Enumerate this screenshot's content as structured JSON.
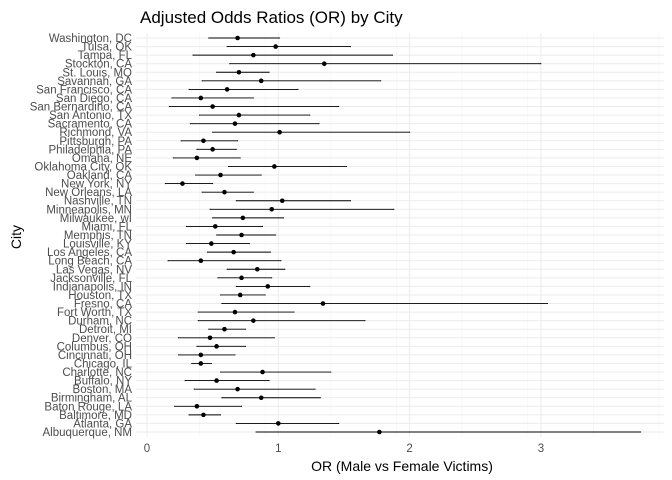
{
  "chart_data": {
    "type": "scatter",
    "title": "Adjusted Odds Ratios (OR) by City",
    "xlabel": "OR (Male vs Female Victims)",
    "ylabel": "City",
    "xlim": [
      -0.1,
      3.9
    ],
    "xticks": [
      0,
      1,
      2,
      3
    ],
    "grid": true,
    "legend": "none",
    "cities": [
      "Albuquerque, NM",
      "Atlanta, GA",
      "Baltimore, MD",
      "Baton Rouge, LA",
      "Birmingham, AL",
      "Boston, MA",
      "Buffalo, NY",
      "Charlotte, NC",
      "Chicago, IL",
      "Cincinnati, OH",
      "Columbus, OH",
      "Denver, CO",
      "Detroit, MI",
      "Durham, NC",
      "Fort Worth, TX",
      "Fresno, CA",
      "Houston, TX",
      "Indianapolis, IN",
      "Jacksonville, FL",
      "Las Vegas, NV",
      "Long Beach, CA",
      "Los Angeles, CA",
      "Louisville, KY",
      "Memphis, TN",
      "Miami, FL",
      "Milwaukee, wI",
      "Minneapolis, MN",
      "Nashville, TN",
      "New Orleans, LA",
      "New York, NY",
      "Oakland, CA",
      "Oklahoma City, OK",
      "Omaha, NE",
      "Philadelphia, PA",
      "Pittsburgh, PA",
      "Richmond, VA",
      "Sacramento, CA",
      "San Antonio, TX",
      "San Bernardino, CA",
      "San Diego, CA",
      "San Francisco, CA",
      "Savannah, GA",
      "St. Louis, MO",
      "Stockton, CA",
      "Tampa, FL",
      "Tulsa, OK",
      "Washington, DC"
    ],
    "or": [
      1.77,
      1.0,
      0.43,
      0.38,
      0.87,
      0.69,
      0.53,
      0.88,
      0.41,
      0.41,
      0.53,
      0.48,
      0.59,
      0.81,
      0.67,
      1.34,
      0.71,
      0.92,
      0.72,
      0.84,
      0.41,
      0.66,
      0.49,
      0.72,
      0.52,
      0.73,
      0.95,
      1.03,
      0.59,
      0.27,
      0.56,
      0.97,
      0.38,
      0.5,
      0.43,
      1.01,
      0.67,
      0.7,
      0.5,
      0.41,
      0.61,
      0.87,
      0.7,
      1.35,
      0.81,
      0.98,
      0.69
    ],
    "lower": [
      0.83,
      0.68,
      0.32,
      0.21,
      0.57,
      0.36,
      0.29,
      0.56,
      0.34,
      0.24,
      0.38,
      0.24,
      0.47,
      0.39,
      0.39,
      0.57,
      0.56,
      0.68,
      0.54,
      0.61,
      0.16,
      0.46,
      0.3,
      0.53,
      0.3,
      0.5,
      0.48,
      0.68,
      0.42,
      0.14,
      0.37,
      0.62,
      0.2,
      0.38,
      0.26,
      0.5,
      0.33,
      0.4,
      0.17,
      0.19,
      0.32,
      0.42,
      0.53,
      0.63,
      0.35,
      0.61,
      0.47
    ],
    "upper": [
      3.76,
      1.46,
      0.56,
      0.72,
      1.32,
      1.28,
      0.93,
      1.4,
      0.49,
      0.67,
      0.75,
      0.97,
      0.75,
      1.66,
      1.12,
      3.05,
      0.9,
      1.24,
      0.95,
      1.05,
      1.02,
      0.94,
      0.78,
      0.98,
      0.88,
      1.04,
      1.88,
      1.55,
      0.81,
      0.5,
      0.87,
      1.52,
      0.71,
      0.68,
      0.69,
      2.0,
      1.31,
      1.24,
      1.46,
      0.81,
      1.15,
      1.78,
      0.93,
      3.0,
      1.87,
      1.55,
      1.01
    ]
  }
}
